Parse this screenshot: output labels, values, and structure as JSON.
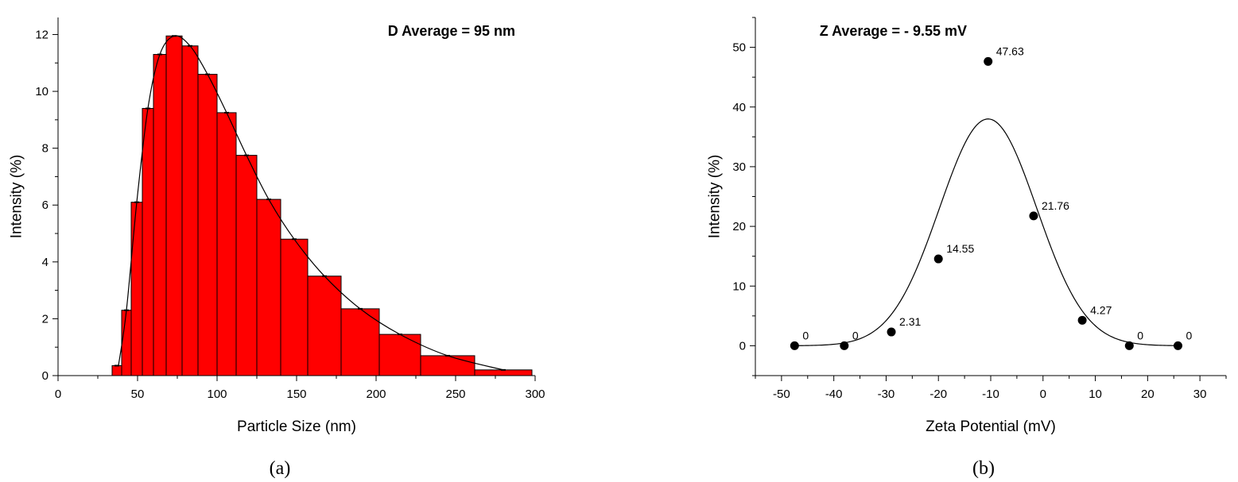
{
  "chart_data": [
    {
      "type": "bar",
      "caption": "(a)",
      "annotation": "D Average = 95 nm",
      "xlabel": "Particle Size (nm)",
      "ylabel": "Intensity (%)",
      "xlim": [
        0,
        300
      ],
      "ylim": [
        0,
        12.6
      ],
      "xticks": [
        0,
        50,
        100,
        150,
        200,
        250,
        300
      ],
      "yticks": [
        0,
        2,
        4,
        6,
        8,
        10,
        12
      ],
      "grid": false,
      "bar_color": "#ff0000",
      "bars": [
        {
          "x0": 34,
          "x1": 40,
          "y": 0.35
        },
        {
          "x0": 40,
          "x1": 46,
          "y": 2.3
        },
        {
          "x0": 46,
          "x1": 53,
          "y": 6.1
        },
        {
          "x0": 53,
          "x1": 60,
          "y": 9.4
        },
        {
          "x0": 60,
          "x1": 68,
          "y": 11.3
        },
        {
          "x0": 68,
          "x1": 78,
          "y": 11.95
        },
        {
          "x0": 78,
          "x1": 88,
          "y": 11.6
        },
        {
          "x0": 88,
          "x1": 100,
          "y": 10.6
        },
        {
          "x0": 100,
          "x1": 112,
          "y": 9.25
        },
        {
          "x0": 112,
          "x1": 125,
          "y": 7.75
        },
        {
          "x0": 125,
          "x1": 140,
          "y": 6.2
        },
        {
          "x0": 140,
          "x1": 157,
          "y": 4.8
        },
        {
          "x0": 157,
          "x1": 178,
          "y": 3.5
        },
        {
          "x0": 178,
          "x1": 202,
          "y": 2.35
        },
        {
          "x0": 202,
          "x1": 228,
          "y": 1.45
        },
        {
          "x0": 228,
          "x1": 262,
          "y": 0.7
        },
        {
          "x0": 262,
          "x1": 298,
          "y": 0.2
        }
      ],
      "fit_curve": [
        [
          38,
          0.35
        ],
        [
          43,
          2.3
        ],
        [
          49.5,
          6.1
        ],
        [
          56.5,
          9.4
        ],
        [
          64,
          11.3
        ],
        [
          73,
          11.95
        ],
        [
          83,
          11.6
        ],
        [
          94,
          10.6
        ],
        [
          106,
          9.25
        ],
        [
          118.5,
          7.75
        ],
        [
          132.5,
          6.2
        ],
        [
          148.5,
          4.8
        ],
        [
          167.5,
          3.5
        ],
        [
          190,
          2.35
        ],
        [
          215,
          1.45
        ],
        [
          245,
          0.7
        ],
        [
          280,
          0.2
        ]
      ]
    },
    {
      "type": "scatter",
      "caption": "(b)",
      "annotation": "Z Average = - 9.55 mV",
      "xlabel": "Zeta Potential (mV)",
      "ylabel": "Intensity (%)",
      "xlim": [
        -55,
        35
      ],
      "ylim": [
        -5,
        55
      ],
      "xticks": [
        -50,
        -40,
        -30,
        -20,
        -10,
        0,
        10,
        20,
        30
      ],
      "yticks": [
        0,
        10,
        20,
        30,
        40,
        50
      ],
      "grid": false,
      "points": [
        {
          "x": -47.5,
          "y": 0,
          "label": "0"
        },
        {
          "x": -38,
          "y": 0,
          "label": "0"
        },
        {
          "x": -29,
          "y": 2.31,
          "label": "2.31"
        },
        {
          "x": -20,
          "y": 14.55,
          "label": "14.55"
        },
        {
          "x": -10.5,
          "y": 47.63,
          "label": "47.63"
        },
        {
          "x": -1.8,
          "y": 21.76,
          "label": "21.76"
        },
        {
          "x": 7.5,
          "y": 4.27,
          "label": "4.27"
        },
        {
          "x": 16.5,
          "y": 0,
          "label": "0"
        },
        {
          "x": 25.8,
          "y": 0,
          "label": "0"
        }
      ],
      "fit": {
        "type": "gaussian",
        "amplitude": 38,
        "center": -10.5,
        "sigma": 9.3,
        "x_from": -47.5,
        "x_to": 25.8
      }
    }
  ]
}
